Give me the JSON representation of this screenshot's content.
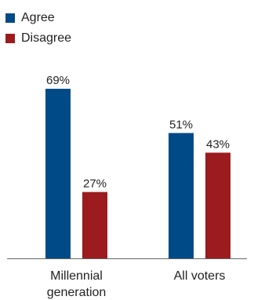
{
  "chart_data": {
    "type": "bar",
    "categories": [
      "Millennial generation",
      "All voters"
    ],
    "category_lines": [
      [
        "Millennial",
        "generation"
      ],
      [
        "All voters"
      ]
    ],
    "series": [
      {
        "name": "Agree",
        "values": [
          69,
          51
        ],
        "color": "#004b87"
      },
      {
        "name": "Disagree",
        "values": [
          27,
          43
        ],
        "color": "#9b1b1e"
      }
    ],
    "value_suffix": "%",
    "ylim": [
      0,
      100
    ],
    "grid": false,
    "legend_position": "top-left",
    "title": "",
    "xlabel": "",
    "ylabel": ""
  }
}
